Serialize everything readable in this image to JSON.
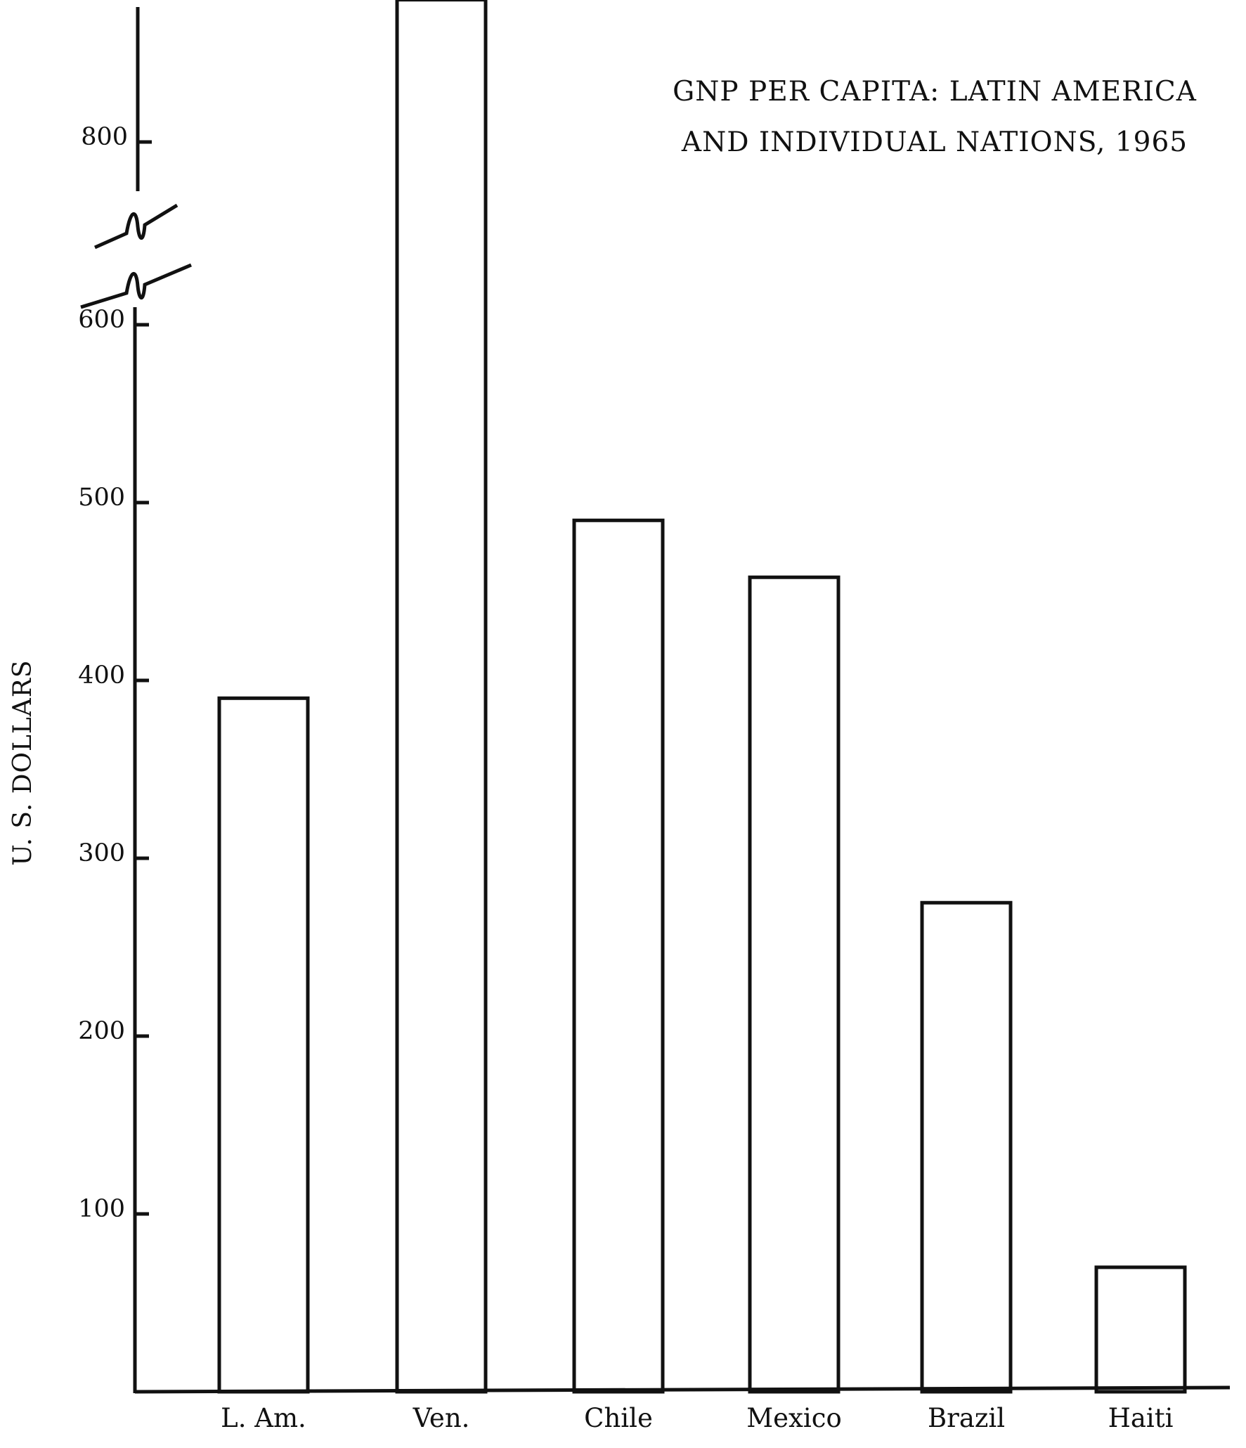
{
  "chart_data": {
    "type": "bar",
    "title_lines": [
      "GNP PER CAPITA:  LATIN AMERICA",
      "AND INDIVIDUAL NATIONS, 1965"
    ],
    "ylabel": "U. S. DOLLARS",
    "xlabel": "",
    "categories": [
      "L. Am.",
      "Ven.",
      "Chile",
      "Mexico",
      "Brazil",
      "Haiti"
    ],
    "values": [
      390,
      880,
      490,
      458,
      275,
      70
    ],
    "yticks": [
      100,
      200,
      300,
      400,
      500,
      600,
      800
    ],
    "ylim": [
      0,
      880
    ],
    "axis_break": {
      "from": 600,
      "to": 800
    },
    "grid": false,
    "legend": "none",
    "bar_fill": "#ffffff",
    "stroke_color": "#111111"
  }
}
